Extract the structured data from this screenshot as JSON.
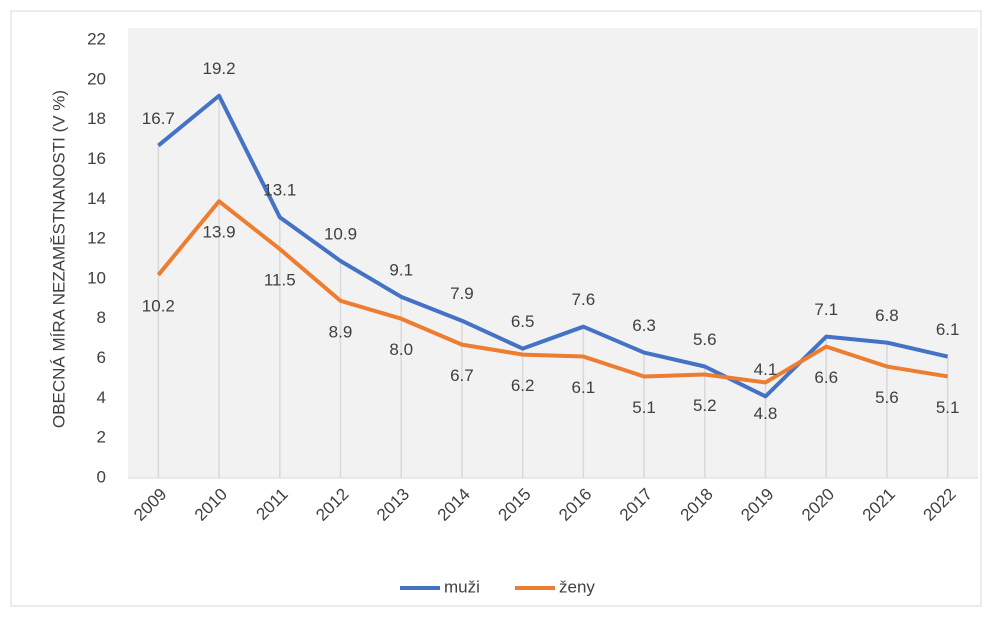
{
  "chart_data": {
    "type": "line",
    "y_label": "OBECNÁ MÍRA NEZAMĚSTNANOSTI (V %)",
    "categories": [
      "2009",
      "2010",
      "2011",
      "2012",
      "2013",
      "2014",
      "2015",
      "2016",
      "2017",
      "2018",
      "2019",
      "2020",
      "2021",
      "2022"
    ],
    "series": [
      {
        "name": "muži",
        "color": "#4472c4",
        "values": [
          16.7,
          19.2,
          13.1,
          10.9,
          9.1,
          7.9,
          6.5,
          7.6,
          6.3,
          5.6,
          4.1,
          7.1,
          6.8,
          6.1
        ]
      },
      {
        "name": "ženy",
        "color": "#ed7d31",
        "values": [
          10.2,
          13.9,
          11.5,
          8.9,
          8.0,
          6.7,
          6.2,
          6.1,
          5.1,
          5.2,
          4.8,
          6.6,
          5.6,
          5.1
        ],
        "value_labels": [
          "10.2",
          "13.9",
          "11.5",
          "8.9",
          "8.0",
          "6.7",
          "6.2",
          "6.1",
          "5.1",
          "5.2",
          "4.8",
          "6.6",
          "5.6",
          "5.1"
        ]
      }
    ],
    "ylim": [
      0,
      22
    ],
    "yticks": [
      0,
      2,
      4,
      6,
      8,
      10,
      12,
      14,
      16,
      18,
      20,
      22
    ],
    "legend": "bottom"
  }
}
